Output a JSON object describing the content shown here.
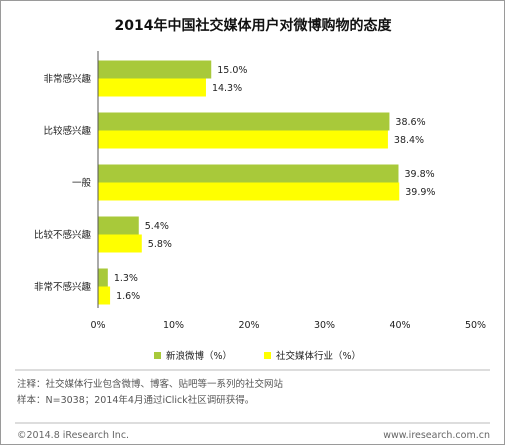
{
  "chart_data": {
    "type": "bar",
    "orientation": "horizontal",
    "title": "2014年中国社交媒体用户对微博购物的态度",
    "categories": [
      "非常感兴趣",
      "比较感兴趣",
      "一般",
      "比较不感兴趣",
      "非常不感兴趣"
    ],
    "series": [
      {
        "name": "新浪微博（%）",
        "color": "#a8c93a",
        "values": [
          15.0,
          38.6,
          39.8,
          5.4,
          1.3
        ],
        "labels": [
          "15.0%",
          "38.6%",
          "39.8%",
          "5.4%",
          "1.3%"
        ]
      },
      {
        "name": "社交媒体行业（%）",
        "color": "#ffff00",
        "values": [
          14.3,
          38.4,
          39.9,
          5.8,
          1.6
        ],
        "labels": [
          "14.3%",
          "38.4%",
          "39.9%",
          "5.8%",
          "1.6%"
        ]
      }
    ],
    "xlim": [
      0,
      50
    ],
    "xticks": [
      0,
      10,
      20,
      30,
      40,
      50
    ],
    "xtick_labels": [
      "0%",
      "10%",
      "20%",
      "30%",
      "40%",
      "50%"
    ],
    "grid": false,
    "legend_position": "bottom"
  },
  "notes": [
    "注释：社交媒体行业包含微博、博客、贴吧等一系列的社交网站",
    "样本：N=3038；2014年4月通过iClick社区调研获得。"
  ],
  "footer": {
    "copyright": "©2014.8 iResearch Inc.",
    "website": "www.iresearch.com.cn"
  }
}
